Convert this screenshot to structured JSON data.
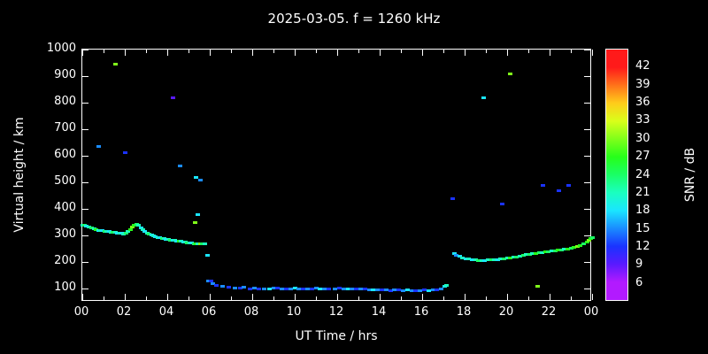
{
  "title": "2025-03-05. f = 1260 kHz",
  "chart_data": {
    "type": "scatter",
    "title": "2025-03-05. f = 1260 kHz",
    "xlabel": "UT Time / hrs",
    "ylabel": "Virtual height / km",
    "x_range": [
      0,
      24
    ],
    "y_range": [
      50,
      1000
    ],
    "x_ticks": {
      "values": [
        0,
        2,
        4,
        6,
        8,
        10,
        12,
        14,
        16,
        18,
        20,
        22,
        24
      ],
      "labels": [
        "00",
        "02",
        "04",
        "06",
        "08",
        "10",
        "12",
        "14",
        "16",
        "18",
        "20",
        "22",
        "00"
      ]
    },
    "y_ticks": [
      100,
      200,
      300,
      400,
      500,
      600,
      700,
      800,
      900,
      1000
    ],
    "colorbar": {
      "label": "SNR / dB",
      "ticks": [
        6,
        9,
        12,
        15,
        18,
        21,
        24,
        27,
        30,
        33,
        36,
        39,
        42
      ],
      "display_range": [
        3,
        45
      ],
      "color_range": [
        6,
        42
      ]
    },
    "points_format": [
      "ut_hours",
      "virtual_height_km",
      "snr_db"
    ],
    "points": [
      [
        0.0,
        340,
        21
      ],
      [
        0.1,
        337,
        24
      ],
      [
        0.2,
        334,
        18
      ],
      [
        0.3,
        331,
        21
      ],
      [
        0.45,
        328,
        24
      ],
      [
        0.55,
        324,
        21
      ],
      [
        0.65,
        321,
        27
      ],
      [
        0.75,
        319,
        18
      ],
      [
        0.85,
        318,
        21
      ],
      [
        0.95,
        317,
        18
      ],
      [
        1.05,
        316,
        24
      ],
      [
        1.15,
        315,
        21
      ],
      [
        1.25,
        314,
        18
      ],
      [
        1.35,
        313,
        21
      ],
      [
        1.45,
        312,
        24
      ],
      [
        1.55,
        311,
        21
      ],
      [
        1.65,
        310,
        18
      ],
      [
        1.75,
        309,
        21
      ],
      [
        1.85,
        307,
        18
      ],
      [
        1.95,
        306,
        21
      ],
      [
        2.05,
        308,
        24
      ],
      [
        2.15,
        314,
        21
      ],
      [
        2.25,
        322,
        27
      ],
      [
        2.35,
        332,
        30
      ],
      [
        2.45,
        340,
        27
      ],
      [
        2.55,
        343,
        24
      ],
      [
        2.65,
        338,
        21
      ],
      [
        2.75,
        330,
        18
      ],
      [
        2.85,
        322,
        21
      ],
      [
        2.95,
        315,
        18
      ],
      [
        3.05,
        310,
        21
      ],
      [
        3.15,
        306,
        24
      ],
      [
        3.25,
        302,
        18
      ],
      [
        3.35,
        299,
        21
      ],
      [
        3.45,
        296,
        18
      ],
      [
        3.55,
        293,
        21
      ],
      [
        3.65,
        291,
        18
      ],
      [
        3.75,
        289,
        24
      ],
      [
        3.85,
        287,
        21
      ],
      [
        3.95,
        286,
        18
      ],
      [
        4.05,
        285,
        21
      ],
      [
        4.15,
        283,
        24
      ],
      [
        4.25,
        282,
        18
      ],
      [
        4.35,
        281,
        21
      ],
      [
        4.45,
        279,
        18
      ],
      [
        4.55,
        278,
        27
      ],
      [
        4.65,
        277,
        21
      ],
      [
        4.75,
        276,
        18
      ],
      [
        4.85,
        274,
        21
      ],
      [
        4.95,
        273,
        24
      ],
      [
        5.05,
        272,
        21
      ],
      [
        5.15,
        271,
        18
      ],
      [
        5.25,
        270,
        24
      ],
      [
        5.35,
        269,
        27
      ],
      [
        5.45,
        268,
        21
      ],
      [
        5.55,
        269,
        30
      ],
      [
        5.65,
        268,
        24
      ],
      [
        5.75,
        267,
        21
      ],
      [
        0.75,
        635,
        15
      ],
      [
        1.55,
        945,
        30
      ],
      [
        2.0,
        612,
        12
      ],
      [
        4.25,
        818,
        9
      ],
      [
        4.6,
        562,
        15
      ],
      [
        5.3,
        350,
        30
      ],
      [
        5.45,
        378,
        18
      ],
      [
        5.35,
        520,
        18
      ],
      [
        5.55,
        508,
        15
      ],
      [
        5.9,
        225,
        18
      ],
      [
        5.95,
        130,
        15
      ],
      [
        6.05,
        128,
        12
      ],
      [
        6.15,
        118,
        15
      ],
      [
        6.3,
        112,
        12
      ],
      [
        6.6,
        108,
        15
      ],
      [
        6.9,
        105,
        12
      ],
      [
        7.2,
        103,
        15
      ],
      [
        7.45,
        101,
        12
      ],
      [
        7.6,
        104,
        15
      ],
      [
        7.9,
        100,
        12
      ],
      [
        8.1,
        102,
        15
      ],
      [
        8.3,
        100,
        12
      ],
      [
        8.55,
        98,
        15
      ],
      [
        8.8,
        100,
        18
      ],
      [
        9.0,
        101,
        15
      ],
      [
        9.2,
        102,
        12
      ],
      [
        9.4,
        100,
        15
      ],
      [
        9.6,
        99,
        12
      ],
      [
        9.8,
        100,
        15
      ],
      [
        10.0,
        101,
        18
      ],
      [
        10.2,
        100,
        15
      ],
      [
        10.4,
        98,
        12
      ],
      [
        10.6,
        100,
        15
      ],
      [
        10.8,
        99,
        12
      ],
      [
        11.0,
        101,
        15
      ],
      [
        11.2,
        100,
        18
      ],
      [
        11.4,
        99,
        15
      ],
      [
        11.6,
        98,
        12
      ],
      [
        11.9,
        100,
        15
      ],
      [
        12.1,
        101,
        12
      ],
      [
        12.3,
        100,
        15
      ],
      [
        12.5,
        99,
        18
      ],
      [
        12.7,
        98,
        15
      ],
      [
        12.9,
        100,
        12
      ],
      [
        13.1,
        99,
        15
      ],
      [
        13.3,
        98,
        12
      ],
      [
        13.5,
        96,
        15
      ],
      [
        13.7,
        95,
        18
      ],
      [
        13.9,
        96,
        15
      ],
      [
        14.1,
        95,
        12
      ],
      [
        14.3,
        94,
        15
      ],
      [
        14.5,
        93,
        12
      ],
      [
        14.7,
        95,
        15
      ],
      [
        14.9,
        94,
        12
      ],
      [
        15.1,
        93,
        15
      ],
      [
        15.3,
        94,
        18
      ],
      [
        15.5,
        93,
        15
      ],
      [
        15.7,
        92,
        12
      ],
      [
        15.9,
        93,
        15
      ],
      [
        16.1,
        94,
        12
      ],
      [
        16.3,
        93,
        18
      ],
      [
        16.5,
        95,
        15
      ],
      [
        16.7,
        96,
        12
      ],
      [
        16.9,
        100,
        15
      ],
      [
        17.05,
        108,
        18
      ],
      [
        17.15,
        112,
        21
      ],
      [
        17.5,
        232,
        18
      ],
      [
        17.6,
        226,
        15
      ],
      [
        17.75,
        221,
        18
      ],
      [
        17.9,
        216,
        21
      ],
      [
        18.05,
        213,
        18
      ],
      [
        18.2,
        211,
        21
      ],
      [
        18.35,
        209,
        18
      ],
      [
        18.5,
        207,
        21
      ],
      [
        18.65,
        206,
        24
      ],
      [
        18.8,
        205,
        21
      ],
      [
        18.95,
        206,
        18
      ],
      [
        19.1,
        207,
        21
      ],
      [
        19.25,
        208,
        24
      ],
      [
        19.4,
        209,
        21
      ],
      [
        19.55,
        210,
        18
      ],
      [
        19.7,
        212,
        21
      ],
      [
        19.85,
        213,
        24
      ],
      [
        20.0,
        215,
        21
      ],
      [
        20.15,
        216,
        27
      ],
      [
        20.3,
        218,
        21
      ],
      [
        20.45,
        220,
        24
      ],
      [
        20.6,
        222,
        21
      ],
      [
        20.75,
        224,
        24
      ],
      [
        20.9,
        227,
        21
      ],
      [
        21.05,
        229,
        24
      ],
      [
        21.2,
        231,
        21
      ],
      [
        21.35,
        233,
        27
      ],
      [
        21.5,
        234,
        24
      ],
      [
        21.65,
        236,
        21
      ],
      [
        21.8,
        238,
        27
      ],
      [
        21.95,
        240,
        24
      ],
      [
        22.1,
        241,
        21
      ],
      [
        22.25,
        243,
        24
      ],
      [
        22.4,
        244,
        27
      ],
      [
        22.55,
        246,
        24
      ],
      [
        22.7,
        247,
        21
      ],
      [
        22.85,
        249,
        27
      ],
      [
        23.0,
        251,
        24
      ],
      [
        23.15,
        254,
        27
      ],
      [
        23.3,
        258,
        30
      ],
      [
        23.45,
        263,
        27
      ],
      [
        23.6,
        269,
        24
      ],
      [
        23.75,
        276,
        27
      ],
      [
        23.85,
        282,
        30
      ],
      [
        23.95,
        288,
        27
      ],
      [
        24.0,
        292,
        24
      ],
      [
        17.45,
        438,
        12
      ],
      [
        18.9,
        820,
        18
      ],
      [
        19.75,
        420,
        12
      ],
      [
        20.15,
        910,
        30
      ],
      [
        21.7,
        488,
        12
      ],
      [
        22.45,
        468,
        12
      ],
      [
        22.9,
        488,
        12
      ],
      [
        21.45,
        110,
        30
      ]
    ]
  }
}
